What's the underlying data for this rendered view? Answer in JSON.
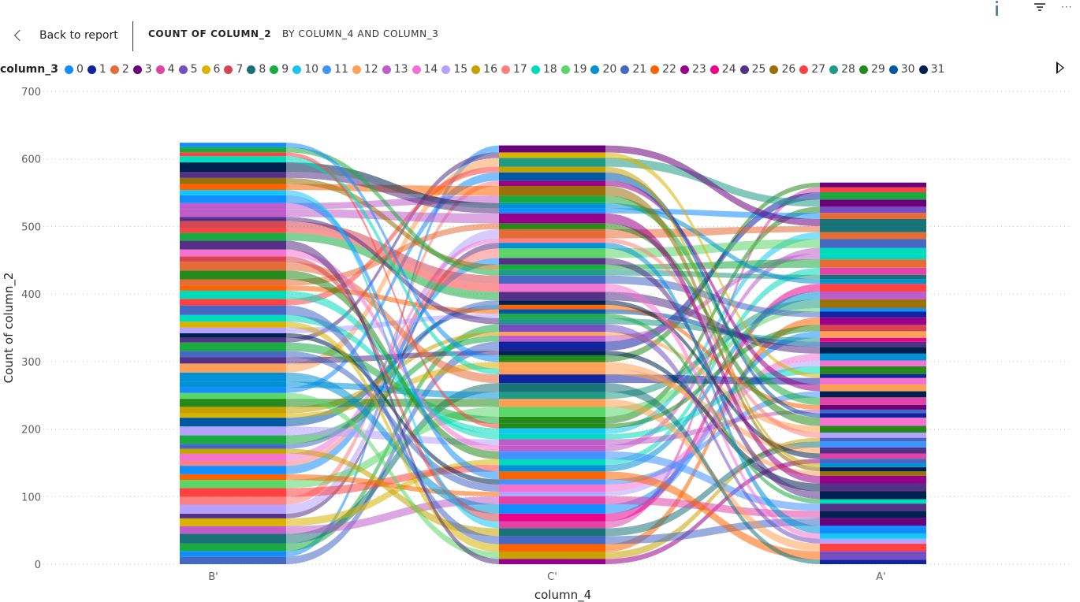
{
  "header": {
    "back_label": "Back to report",
    "title_part1": "COUNT OF COLUMN_2",
    "title_part2": "BY COLUMN_4 AND COLUMN_3"
  },
  "legend": {
    "title": "column_3",
    "items": [
      {
        "label": "0",
        "color": "#118DFF"
      },
      {
        "label": "1",
        "color": "#12239E"
      },
      {
        "label": "2",
        "color": "#E66C37"
      },
      {
        "label": "3",
        "color": "#6B007B"
      },
      {
        "label": "4",
        "color": "#E044A7"
      },
      {
        "label": "5",
        "color": "#744EC2"
      },
      {
        "label": "6",
        "color": "#D9B300"
      },
      {
        "label": "7",
        "color": "#D64550"
      },
      {
        "label": "8",
        "color": "#197278"
      },
      {
        "label": "9",
        "color": "#1AAB40"
      },
      {
        "label": "10",
        "color": "#15C6F4"
      },
      {
        "label": "11",
        "color": "#4092FF"
      },
      {
        "label": "12",
        "color": "#FFA058"
      },
      {
        "label": "13",
        "color": "#BE5DC9"
      },
      {
        "label": "14",
        "color": "#F472D0"
      },
      {
        "label": "15",
        "color": "#B5A1FF"
      },
      {
        "label": "16",
        "color": "#C4A200"
      },
      {
        "label": "17",
        "color": "#FF8080"
      },
      {
        "label": "18",
        "color": "#00DBBC"
      },
      {
        "label": "19",
        "color": "#5BD667"
      },
      {
        "label": "20",
        "color": "#0091D5"
      },
      {
        "label": "21",
        "color": "#4668C5"
      },
      {
        "label": "22",
        "color": "#FF6300"
      },
      {
        "label": "23",
        "color": "#99008A"
      },
      {
        "label": "24",
        "color": "#EC008C"
      },
      {
        "label": "25",
        "color": "#533285"
      },
      {
        "label": "26",
        "color": "#99700A"
      },
      {
        "label": "27",
        "color": "#FF4141"
      },
      {
        "label": "28",
        "color": "#1F9A85"
      },
      {
        "label": "29",
        "color": "#25891C"
      },
      {
        "label": "30",
        "color": "#0057A2"
      },
      {
        "label": "31",
        "color": "#002050"
      }
    ]
  },
  "chart_data": {
    "type": "ribbon",
    "xlabel": "column_4",
    "ylabel": "Count of column_2",
    "ylim": [
      0,
      700
    ],
    "yticks": [
      0,
      100,
      200,
      300,
      400,
      500,
      600,
      700
    ],
    "grid": true,
    "legend_position": "top",
    "categories": [
      "B'",
      "C'",
      "A'"
    ],
    "totals": [
      624,
      620,
      565
    ],
    "stack_unit": "rows of count of column_2 per column_3 value, in data units"
  }
}
